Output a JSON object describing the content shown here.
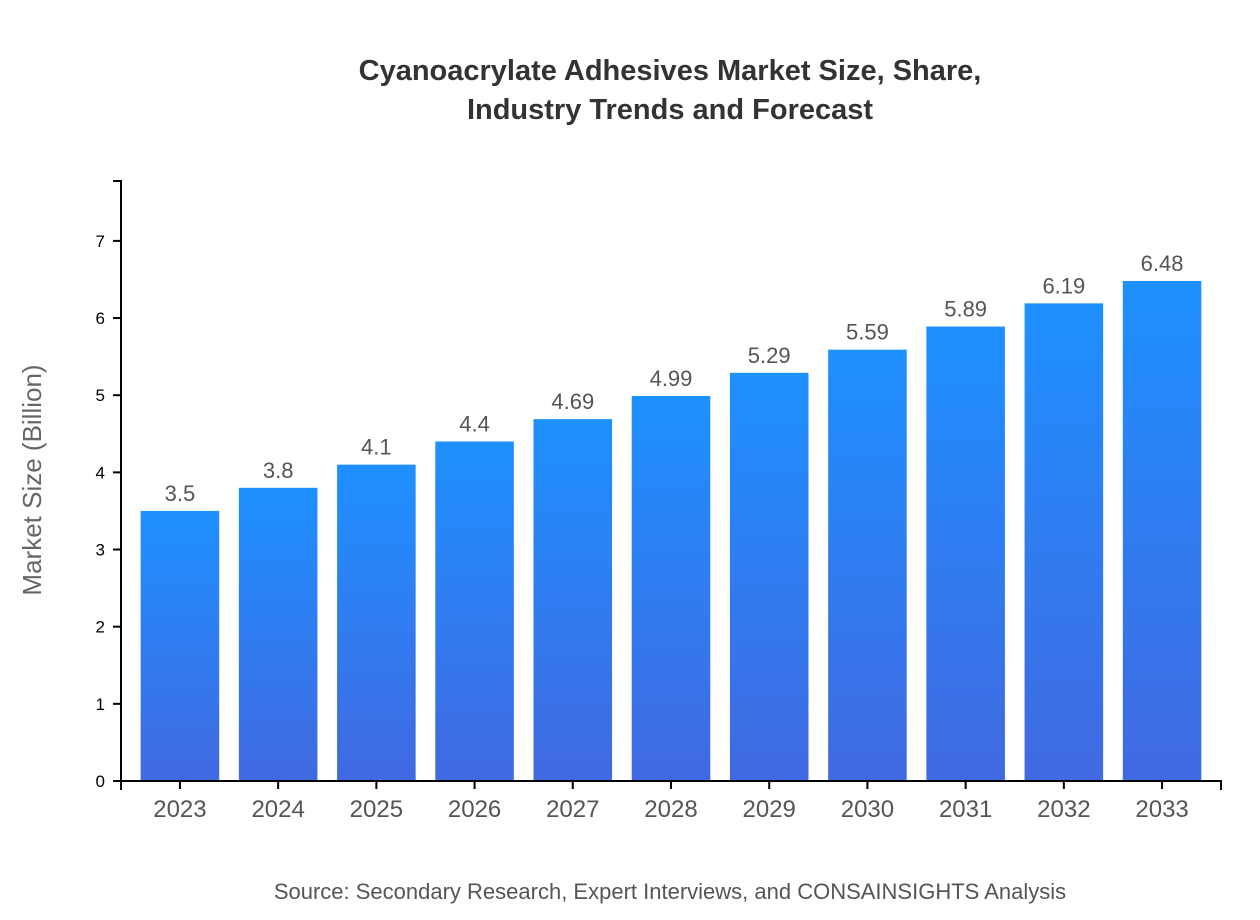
{
  "chart_data": {
    "type": "bar",
    "title": [
      "Cyanoacrylate Adhesives Market Size, Share,",
      "Industry Trends and Forecast"
    ],
    "xlabel": "",
    "ylabel": "Market Size (Billion)",
    "categories": [
      "2023",
      "2024",
      "2025",
      "2026",
      "2027",
      "2028",
      "2029",
      "2030",
      "2031",
      "2032",
      "2033"
    ],
    "values": [
      3.5,
      3.8,
      4.1,
      4.4,
      4.69,
      4.99,
      5.29,
      5.59,
      5.89,
      6.19,
      6.48
    ],
    "ylim": [
      0,
      7.776
    ],
    "yticks": [
      0,
      1,
      2,
      3,
      4,
      5,
      6,
      7
    ],
    "grid": false,
    "colors": {
      "bar_top": "#1E90FF",
      "bar_bottom": "#4169E1"
    },
    "source": "Source: Secondary Research, Expert Interviews, and CONSAINSIGHTS Analysis"
  }
}
